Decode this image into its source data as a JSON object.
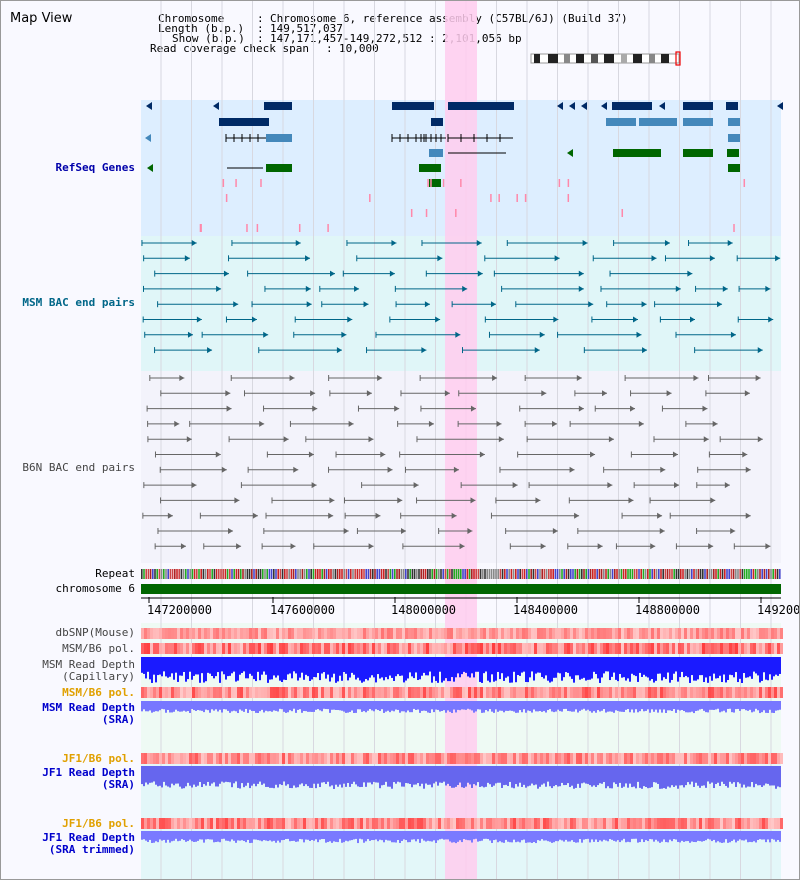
{
  "page": {
    "title": "Map View"
  },
  "info": {
    "chromosome_key": "Chromosome",
    "chromosome_value": "Chromosome 6, reference assembly (C57BL/6J) (Build 37)",
    "length_key": "Length (b.p.)",
    "length_value": "149,517,037",
    "show_key": "Show (b.p.)",
    "show_value": "147,171,457-149,272,512 : 2,101,056 bp",
    "coverage_key": "Read coverage check span",
    "coverage_value": "10,000"
  },
  "tracks": {
    "refseq": "RefSeq Genes",
    "msm_bac": "MSM BAC end pairs",
    "b6n_bac": "B6N BAC end pairs",
    "repeat": "Repeat",
    "chromosome": "chromosome 6",
    "dbsnp": "dbSNP(Mouse)",
    "msm_b6_pol_1": "MSM/B6 pol.",
    "msm_depth_cap": "MSM Read Depth\n(Capillary)",
    "msm_b6_pol_2": "MSM/B6 pol.",
    "msm_depth_sra": "MSM Read Depth\n(SRA)",
    "jf1_b6_pol_1": "JF1/B6 pol.",
    "jf1_depth_sra": "JF1 Read Depth\n(SRA)",
    "jf1_b6_pol_2": "JF1/B6 pol.",
    "jf1_depth_trim": "JF1 Read Depth\n(SRA trimmed)"
  },
  "axis": {
    "ticks": [
      "147200000",
      "147600000",
      "148000000",
      "148400000",
      "148800000",
      "149200000"
    ]
  },
  "colors": {
    "refseq_bg": "#ddeeff",
    "msm_bac_bg": "#e0f6f8",
    "highlight": "#ffccee",
    "gene_dark": "#002a66",
    "gene_mid": "#4488bb",
    "gene_green": "#006600",
    "bac_teal": "#006688",
    "bac_gray": "#666666",
    "chrom_green": "#006600"
  }
}
